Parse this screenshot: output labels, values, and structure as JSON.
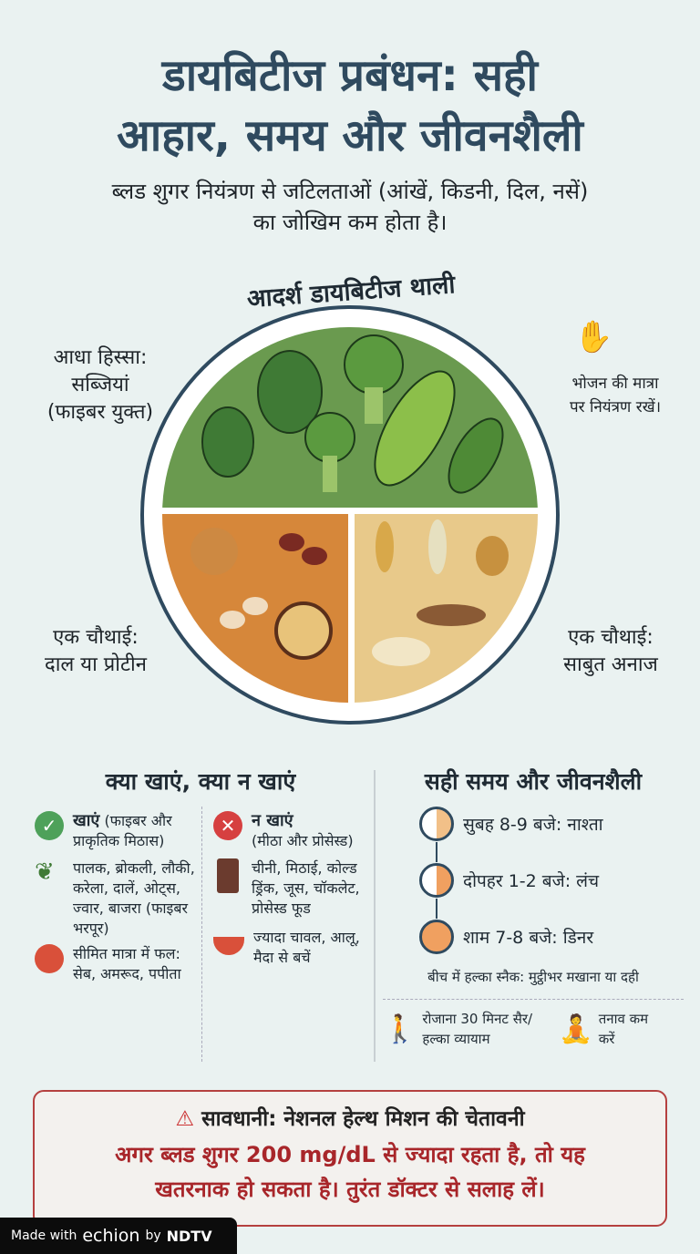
{
  "title": {
    "line1": "डायबिटीज प्रबंधन: सही",
    "line2": "आहार, समय और जीवनशैली"
  },
  "subtitle": {
    "line1": "ब्लड शुगर नियंत्रण से जटिलताओं (आंखें, किडनी, दिल, नसें)",
    "line2": "का जोखिम कम होता है।"
  },
  "plate": {
    "title": "आदर्श डायबिटीज थाली",
    "half": {
      "line1": "आधा हिस्सा:",
      "line2": "सब्जियां",
      "line3": "(फाइबर युक्त)"
    },
    "protein": {
      "line1": "एक चौथाई:",
      "line2": "दाल या प्रोटीन"
    },
    "grains": {
      "line1": "एक चौथाई:",
      "line2": "साबुत अनाज"
    },
    "portion": {
      "line1": "भोजन की मात्रा",
      "line2": "पर नियंत्रण रखें।"
    },
    "colors": {
      "veg": "#6a9a4f",
      "protein": "#d6873a",
      "grains": "#e8c98a"
    }
  },
  "eat": {
    "heading": "क्या खाएं, क्या न खाएं",
    "do_title": "खाएं",
    "do_note": "(फाइबर और प्राकृतिक मिठास)",
    "do_items": [
      "पालक, ब्रोकली, लौकी, करेला, दालें, ओट्स, ज्वार, बाजरा (फाइबर भरपूर)",
      "सीमित मात्रा में फल: सेब, अमरूद, पपीता"
    ],
    "dont_title": "न खाएं",
    "dont_note": "(मीठा और प्रोसेस्ड)",
    "dont_items": [
      "चीनी, मिठाई, कोल्ड ड्रिंक, जूस, चॉकलेट, प्रोसेस्ड फूड",
      "ज्यादा चावल, आलू, मैदा से बचें"
    ]
  },
  "timing": {
    "heading": "सही समय और जीवनशैली",
    "meals": [
      "सुबह 8-9 बजे: नाश्ता",
      "दोपहर 1-2 बजे: लंच",
      "शाम 7-8 बजे: डिनर"
    ],
    "snack": "बीच में हल्का स्नैक: मुट्ठीभर मखाना या दही",
    "walk": "रोजाना 30 मिनट सैर/हल्का व्यायाम",
    "stress": "तनाव कम करें"
  },
  "warning": {
    "title": "सावधानी: नेशनल हेल्थ मिशन की चेतावनी",
    "line1": "अगर ब्लड शुगर 200 mg/dL से ज्यादा रहता है, तो यह",
    "line2": "खतरनाक हो सकता है। तुरंत डॉक्टर से सलाह लें।",
    "color": "#a8262a"
  },
  "badge": {
    "made": "Made with",
    "brand": "echion",
    "by": "by",
    "ndtv": "NDTV"
  }
}
